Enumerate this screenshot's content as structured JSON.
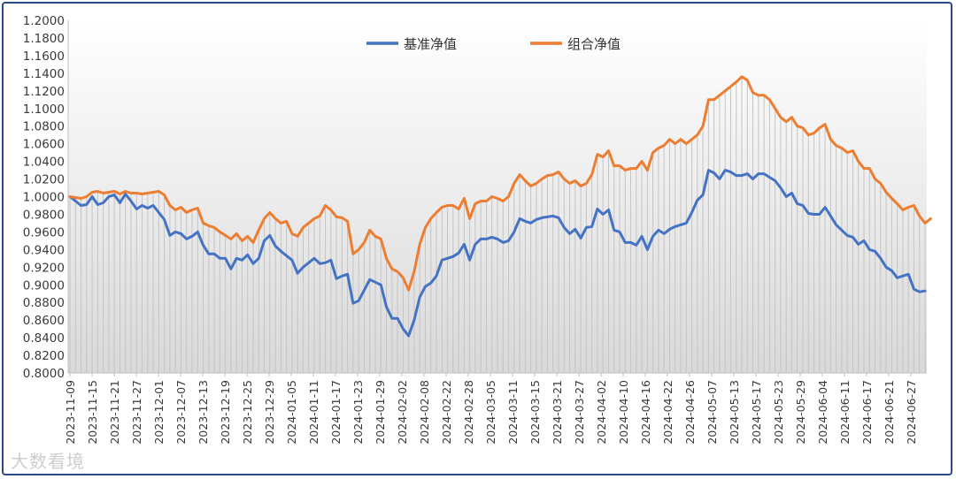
{
  "chart_data": {
    "type": "line",
    "title": "",
    "xlabel": "",
    "ylabel": "",
    "ylim": [
      0.8,
      1.2
    ],
    "y_ticks": [
      "1.2000",
      "1.1800",
      "1.1600",
      "1.1400",
      "1.1200",
      "1.1000",
      "1.0800",
      "1.0600",
      "1.0400",
      "1.0200",
      "1.0000",
      "0.9800",
      "0.9600",
      "0.9400",
      "0.9200",
      "0.9000",
      "0.8800",
      "0.8600",
      "0.8400",
      "0.8200",
      "0.8000"
    ],
    "x_ticks": [
      "2023-11-09",
      "2023-11-15",
      "2023-11-21",
      "2023-11-27",
      "2023-12-01",
      "2023-12-07",
      "2023-12-13",
      "2023-12-19",
      "2023-12-25",
      "2023-12-29",
      "2024-01-05",
      "2024-01-11",
      "2024-01-17",
      "2024-01-23",
      "2024-01-29",
      "2024-02-02",
      "2024-02-08",
      "2024-02-22",
      "2024-02-28",
      "2024-03-05",
      "2024-03-11",
      "2024-03-15",
      "2024-03-21",
      "2024-03-27",
      "2024-04-02",
      "2024-04-10",
      "2024-04-16",
      "2024-04-22",
      "2024-04-26",
      "2024-05-07",
      "2024-05-13",
      "2024-05-17",
      "2024-05-23",
      "2024-05-29",
      "2024-06-04",
      "2024-06-11",
      "2024-06-17",
      "2024-06-21",
      "2024-06-27"
    ],
    "legend_position": "top-center",
    "grid": false,
    "series": [
      {
        "name": "基准净值",
        "color": "#4472c4",
        "values": [
          1.0,
          0.995,
          0.99,
          0.991,
          1.0,
          0.991,
          0.993,
          1.0,
          1.002,
          0.993,
          1.003,
          0.995,
          0.986,
          0.99,
          0.987,
          0.99,
          0.982,
          0.974,
          0.956,
          0.96,
          0.958,
          0.952,
          0.955,
          0.96,
          0.945,
          0.935,
          0.935,
          0.93,
          0.93,
          0.918,
          0.93,
          0.928,
          0.934,
          0.924,
          0.93,
          0.95,
          0.956,
          0.944,
          0.938,
          0.933,
          0.928,
          0.913,
          0.92,
          0.925,
          0.93,
          0.924,
          0.925,
          0.928,
          0.907,
          0.91,
          0.912,
          0.879,
          0.882,
          0.894,
          0.906,
          0.903,
          0.9,
          0.875,
          0.862,
          0.862,
          0.85,
          0.842,
          0.86,
          0.886,
          0.898,
          0.902,
          0.91,
          0.928,
          0.93,
          0.932,
          0.936,
          0.946,
          0.928,
          0.946,
          0.952,
          0.952,
          0.954,
          0.952,
          0.948,
          0.95,
          0.96,
          0.975,
          0.972,
          0.97,
          0.974,
          0.976,
          0.977,
          0.978,
          0.976,
          0.965,
          0.958,
          0.963,
          0.953,
          0.965,
          0.966,
          0.986,
          0.98,
          0.985,
          0.962,
          0.96,
          0.948,
          0.948,
          0.945,
          0.955,
          0.94,
          0.955,
          0.962,
          0.958,
          0.963,
          0.966,
          0.968,
          0.97,
          0.982,
          0.996,
          1.002,
          1.03,
          1.027,
          1.02,
          1.03,
          1.028,
          1.024,
          1.024,
          1.026,
          1.02,
          1.026,
          1.026,
          1.022,
          1.018,
          1.01,
          1.0,
          1.004,
          0.992,
          0.99,
          0.981,
          0.98,
          0.98,
          0.988,
          0.978,
          0.968,
          0.962,
          0.956,
          0.954,
          0.946,
          0.95,
          0.94,
          0.938,
          0.93,
          0.92,
          0.916,
          0.908,
          0.91,
          0.912,
          0.895,
          0.892,
          0.893
        ]
      },
      {
        "name": "组合净值",
        "color": "#ed7d31",
        "values": [
          1.0,
          0.999,
          0.998,
          1.0,
          1.005,
          1.006,
          1.004,
          1.005,
          1.006,
          1.003,
          1.006,
          1.004,
          1.004,
          1.003,
          1.004,
          1.005,
          1.006,
          1.002,
          0.99,
          0.985,
          0.988,
          0.982,
          0.985,
          0.987,
          0.97,
          0.967,
          0.965,
          0.96,
          0.956,
          0.952,
          0.958,
          0.95,
          0.955,
          0.948,
          0.962,
          0.975,
          0.982,
          0.975,
          0.97,
          0.972,
          0.958,
          0.955,
          0.965,
          0.97,
          0.975,
          0.978,
          0.99,
          0.985,
          0.977,
          0.976,
          0.972,
          0.935,
          0.94,
          0.948,
          0.962,
          0.955,
          0.952,
          0.93,
          0.918,
          0.915,
          0.908,
          0.894,
          0.915,
          0.946,
          0.965,
          0.975,
          0.982,
          0.988,
          0.99,
          0.99,
          0.986,
          0.998,
          0.975,
          0.992,
          0.995,
          0.995,
          1.0,
          0.998,
          0.995,
          1.0,
          1.015,
          1.025,
          1.018,
          1.012,
          1.015,
          1.02,
          1.024,
          1.025,
          1.028,
          1.02,
          1.015,
          1.018,
          1.012,
          1.015,
          1.025,
          1.048,
          1.045,
          1.052,
          1.035,
          1.035,
          1.03,
          1.032,
          1.032,
          1.04,
          1.03,
          1.05,
          1.055,
          1.058,
          1.065,
          1.06,
          1.065,
          1.06,
          1.065,
          1.07,
          1.08,
          1.11,
          1.11,
          1.115,
          1.12,
          1.125,
          1.13,
          1.136,
          1.132,
          1.118,
          1.115,
          1.115,
          1.11,
          1.1,
          1.09,
          1.085,
          1.09,
          1.08,
          1.078,
          1.07,
          1.072,
          1.078,
          1.082,
          1.065,
          1.058,
          1.055,
          1.05,
          1.052,
          1.04,
          1.032,
          1.032,
          1.02,
          1.015,
          1.005,
          0.998,
          0.992,
          0.985,
          0.988,
          0.99,
          0.978,
          0.97,
          0.975
        ]
      }
    ]
  },
  "watermark": "大数看境"
}
